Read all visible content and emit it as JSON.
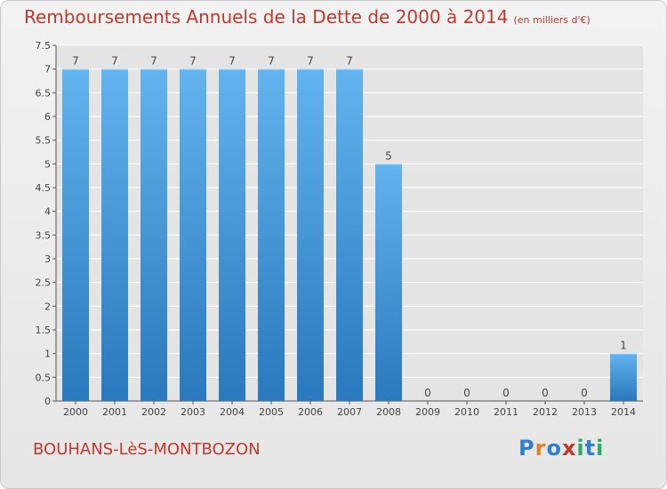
{
  "header": {
    "title": "Remboursements Annuels de la Dette de 2000 à 2014",
    "unit": "(en milliers d'€)"
  },
  "footer": {
    "commune": "BOUHANS-LèS-MONTBOZON",
    "brand": [
      "P",
      "r",
      "o",
      "x",
      "i",
      "t",
      "i"
    ],
    "brand_colors": [
      "#2f7fd1",
      "#e67e22",
      "#2f7fd1",
      "#c0392b",
      "#27ae60",
      "#2f7fd1",
      "#27ae60"
    ]
  },
  "chart_data": {
    "type": "bar",
    "categories": [
      "2000",
      "2001",
      "2002",
      "2003",
      "2004",
      "2005",
      "2006",
      "2007",
      "2008",
      "2009",
      "2010",
      "2011",
      "2012",
      "2013",
      "2014"
    ],
    "values": [
      7,
      7,
      7,
      7,
      7,
      7,
      7,
      7,
      5,
      0,
      0,
      0,
      0,
      0,
      1
    ],
    "data_labels": [
      "7",
      "7",
      "7",
      "7",
      "7",
      "7",
      "7",
      "7",
      "5",
      "0",
      "0",
      "0",
      "0",
      "0",
      "1"
    ],
    "yticks": [
      "0",
      "0.5",
      "1",
      "1.5",
      "2",
      "2.5",
      "3",
      "3.5",
      "4",
      "4.5",
      "5",
      "5.5",
      "6",
      "6.5",
      "7",
      "7.5"
    ],
    "ylim": [
      0,
      7.5
    ],
    "grid": true,
    "bar_color": "#3d8fd8"
  }
}
